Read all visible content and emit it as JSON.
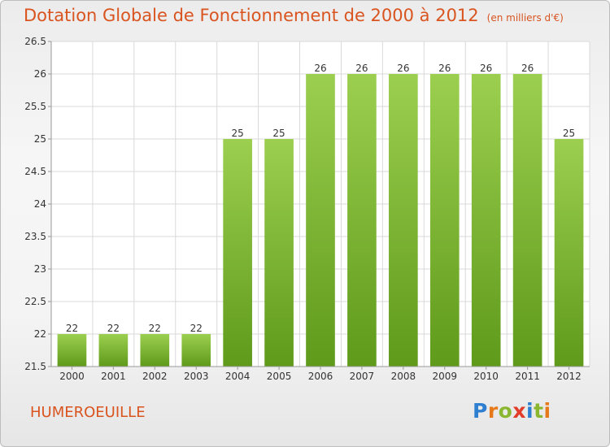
{
  "chart_data": {
    "type": "bar",
    "title": "Dotation Globale de Fonctionnement de 2000 à 2012",
    "subtitle": "(en milliers d'€)",
    "categories": [
      "2000",
      "2001",
      "2002",
      "2003",
      "2004",
      "2005",
      "2006",
      "2007",
      "2008",
      "2009",
      "2010",
      "2011",
      "2012"
    ],
    "values": [
      22,
      22,
      22,
      22,
      25,
      25,
      26,
      26,
      26,
      26,
      26,
      26,
      25
    ],
    "ylim": [
      21.5,
      26.5
    ],
    "yticks": [
      21.5,
      22,
      22.5,
      23,
      23.5,
      24,
      24.5,
      25,
      25.5,
      26,
      26.5
    ],
    "grid": true,
    "bar_color_top": "#9ccf4f",
    "bar_color_bottom": "#5f9a1b"
  },
  "footer": {
    "commune": "HUMEROEUILLE",
    "logo_letters": [
      {
        "ch": "P",
        "color": "#2f7fd1"
      },
      {
        "ch": "r",
        "color": "#e67a1a"
      },
      {
        "ch": "o",
        "color": "#8ab72f"
      },
      {
        "ch": "x",
        "color": "#e23c2b"
      },
      {
        "ch": "i",
        "color": "#2f7fd1"
      },
      {
        "ch": "t",
        "color": "#8ab72f"
      },
      {
        "ch": "i",
        "color": "#e67a1a"
      }
    ]
  },
  "colors": {
    "title": "#d9541f",
    "grid": "#d9d9d9",
    "axis": "#999999"
  }
}
